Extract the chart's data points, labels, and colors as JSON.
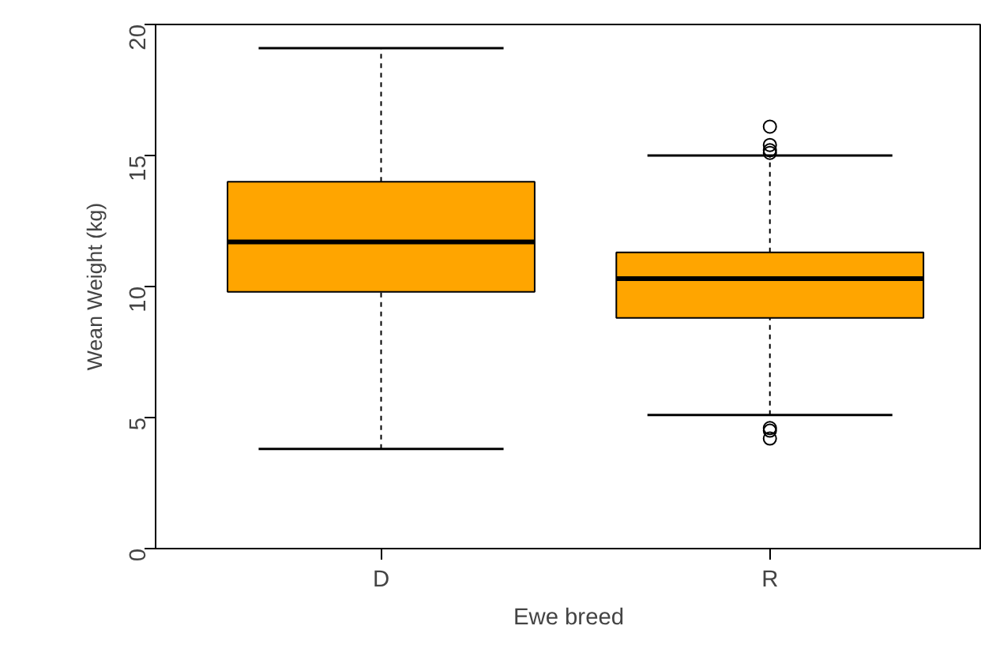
{
  "chart_data": {
    "type": "box",
    "xlabel": "Ewe breed",
    "ylabel": "Wean Weight (kg)",
    "categories": [
      "D",
      "R"
    ],
    "color": "#ffa500",
    "boxes": [
      {
        "low": 3.8,
        "q1": 9.8,
        "median": 11.7,
        "q3": 14.0,
        "high": 19.1
      },
      {
        "low": 5.1,
        "q1": 8.8,
        "median": 10.3,
        "q3": 11.3,
        "high": 15.0,
        "outliers": [
          16.1,
          15.4,
          15.2,
          15.1,
          4.6,
          4.5,
          4.2
        ]
      }
    ],
    "ylim": [
      0,
      20
    ],
    "yticks": [
      0,
      5,
      10,
      15,
      20
    ],
    "grid": false,
    "marker": "circle"
  }
}
